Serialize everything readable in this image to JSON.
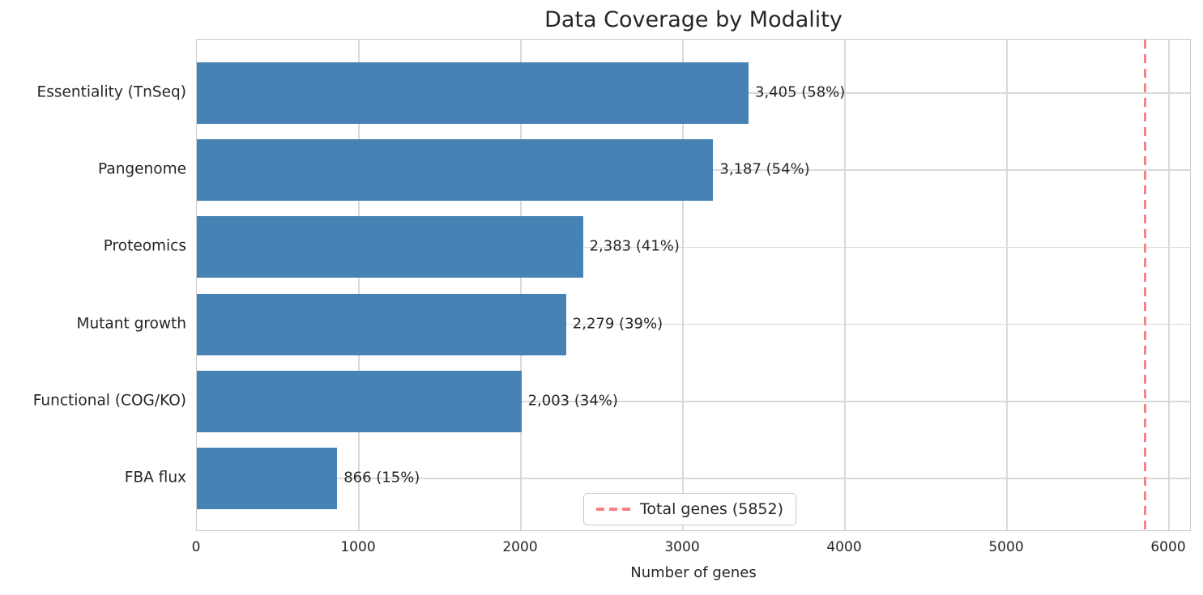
{
  "chart_data": {
    "type": "bar",
    "orientation": "horizontal",
    "title": "Data Coverage by Modality",
    "xlabel": "Number of genes",
    "ylabel": "",
    "categories": [
      "Essentiality (TnSeq)",
      "Pangenome",
      "Proteomics",
      "Mutant growth",
      "Functional (COG/KO)",
      "FBA flux"
    ],
    "values": [
      3405,
      3187,
      2383,
      2279,
      2003,
      866
    ],
    "bar_labels": [
      "3,405 (58%)",
      "3,187 (54%)",
      "2,383 (41%)",
      "2,279 (39%)",
      "2,003 (34%)",
      "866 (15%)"
    ],
    "percents": [
      58,
      54,
      41,
      39,
      34,
      15
    ],
    "x_ticks": [
      "0",
      "1000",
      "2000",
      "3000",
      "4000",
      "5000",
      "6000"
    ],
    "x_tick_values": [
      0,
      1000,
      2000,
      3000,
      4000,
      5000,
      6000
    ],
    "xlim": [
      0,
      6140
    ],
    "grid": true,
    "reference_line": {
      "value": 5852,
      "style": "dashed",
      "legend_label": "Total genes (5852)"
    },
    "legend_position": "lower center",
    "colors": {
      "bar": "#4682B4",
      "reference_line": "#fa8181",
      "grid": "#d9d9d9",
      "spine": "#cccccc",
      "text": "#262626"
    }
  }
}
